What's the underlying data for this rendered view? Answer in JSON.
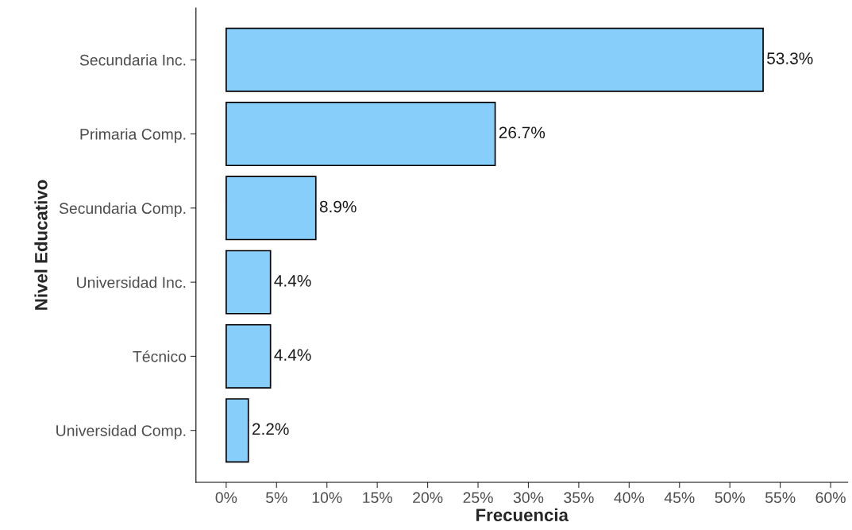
{
  "chart_data": {
    "type": "bar",
    "orientation": "horizontal",
    "xlabel": "Frecuencia",
    "ylabel": "Nivel Educativo",
    "categories": [
      "Secundaria Inc.",
      "Primaria Comp.",
      "Secundaria Comp.",
      "Universidad Inc.",
      "Técnico",
      "Universidad Comp."
    ],
    "values": [
      53.3,
      26.7,
      8.9,
      4.4,
      4.4,
      2.2
    ],
    "value_labels": [
      "53.3%",
      "26.7%",
      "8.9%",
      "4.4%",
      "4.4%",
      "2.2%"
    ],
    "color": "#87cefa",
    "xlim": [
      -3,
      61.7
    ],
    "xticks": [
      {
        "value": 0,
        "label": "0%"
      },
      {
        "value": 5,
        "label": "5%"
      },
      {
        "value": 10,
        "label": "10%"
      },
      {
        "value": 15,
        "label": "15%"
      },
      {
        "value": 20,
        "label": "20%"
      },
      {
        "value": 25,
        "label": "25%"
      },
      {
        "value": 30,
        "label": "30%"
      },
      {
        "value": 35,
        "label": "35%"
      },
      {
        "value": 40,
        "label": "40%"
      },
      {
        "value": 45,
        "label": "45%"
      },
      {
        "value": 50,
        "label": "50%"
      },
      {
        "value": 55,
        "label": "55%"
      },
      {
        "value": 60,
        "label": "60%"
      }
    ],
    "grid": false,
    "legend": false
  }
}
